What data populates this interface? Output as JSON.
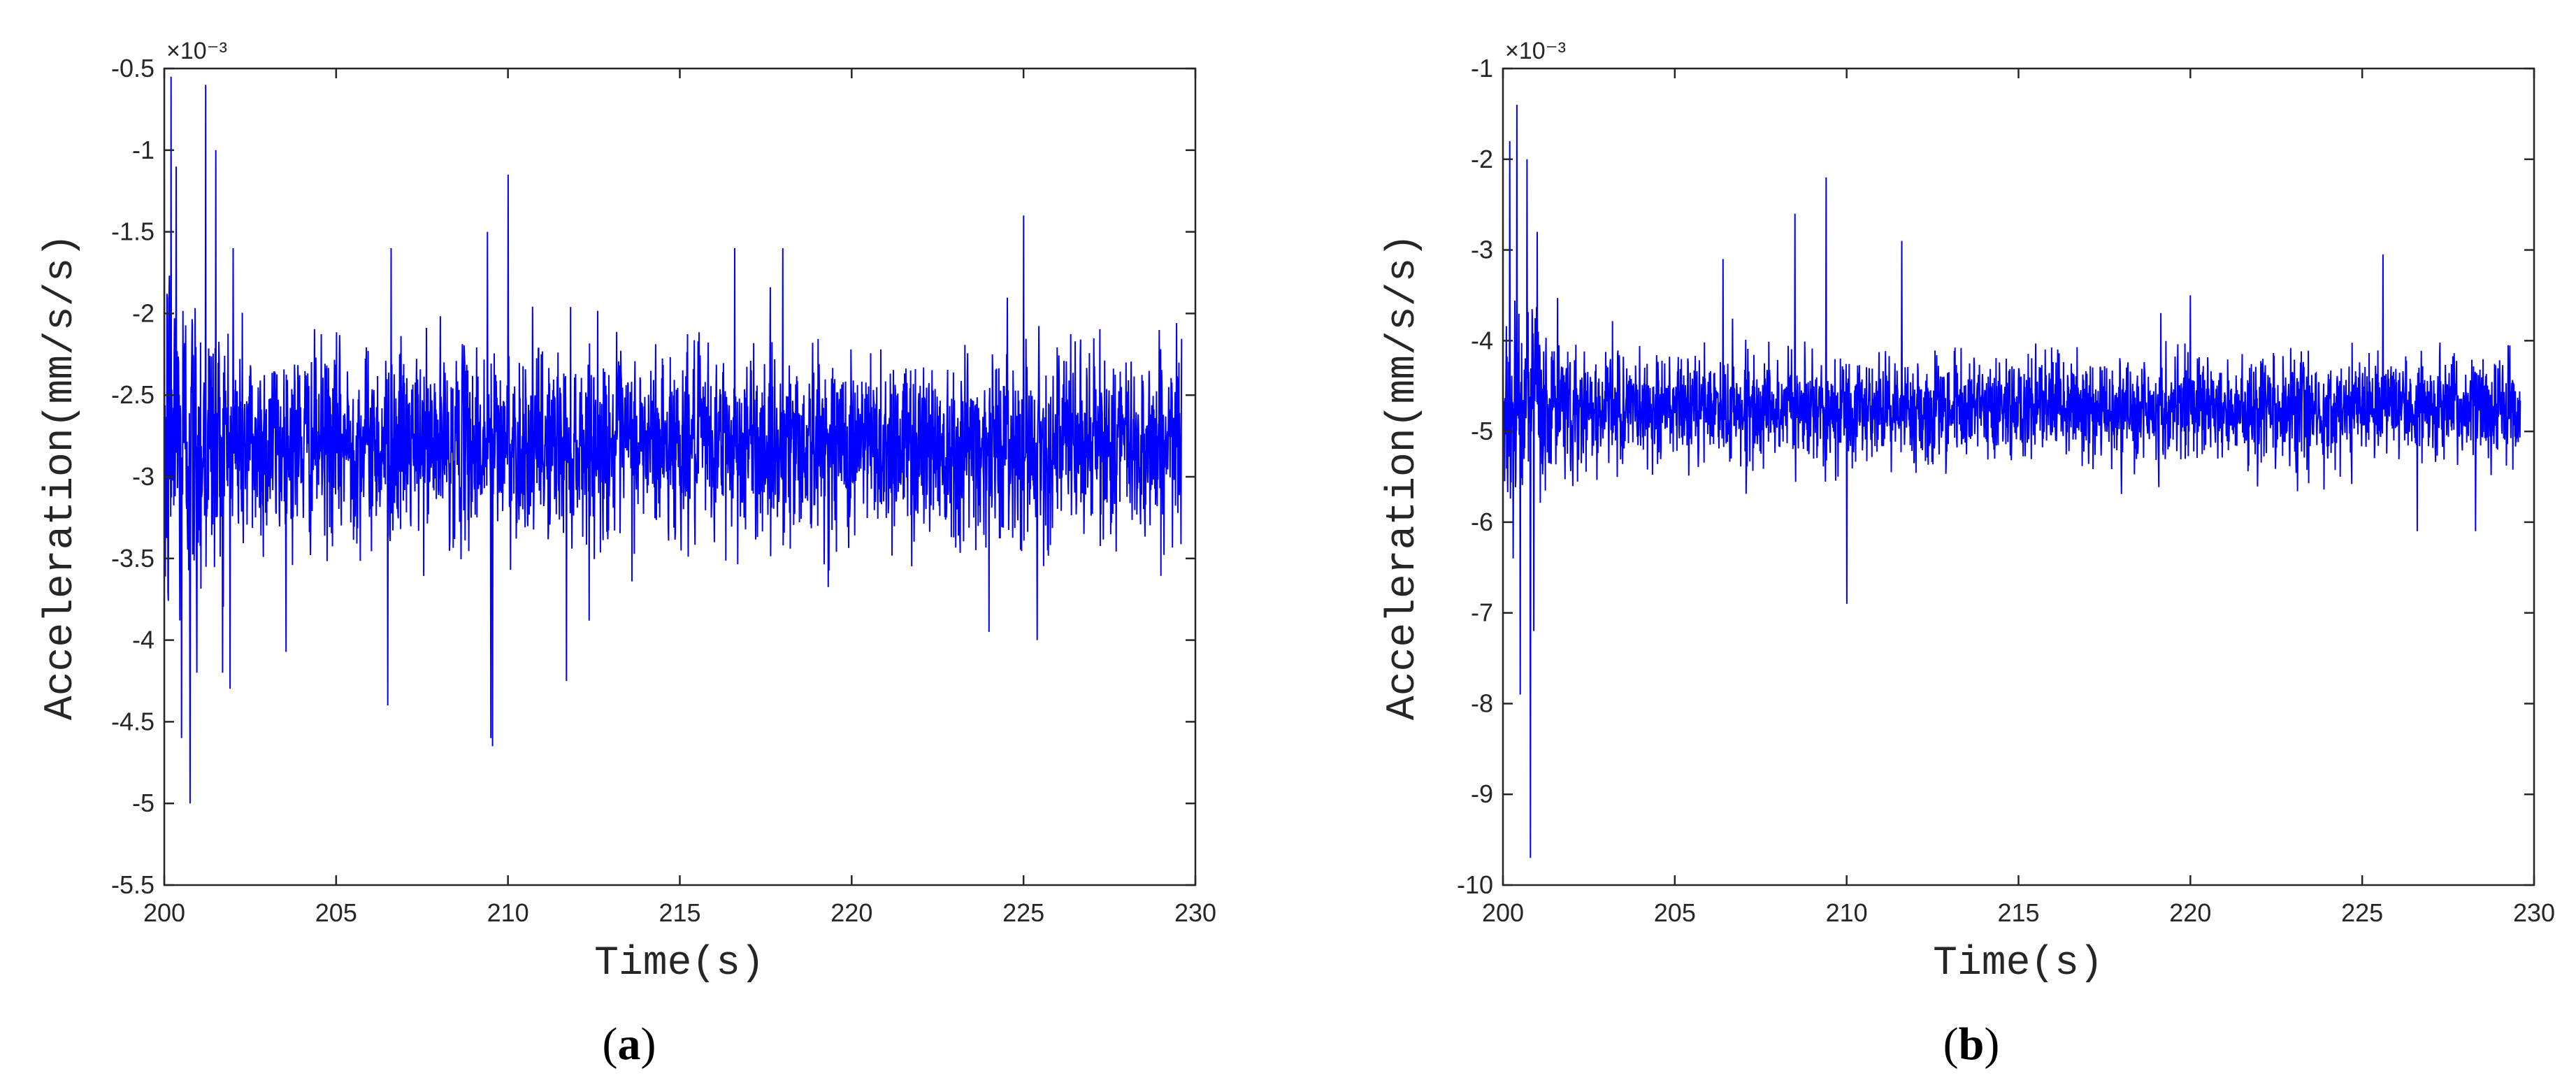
{
  "chart_data": [
    {
      "panel": "(a)",
      "caption_letter": "a",
      "type": "line",
      "xlabel": "Time(s)",
      "ylabel": "Acceleration(mm/s/s)",
      "y_exponent_label": "×10⁻³",
      "xlim": [
        200,
        230
      ],
      "ylim": [
        -5.5,
        -0.5
      ],
      "x_ticks": [
        "200",
        "205",
        "210",
        "215",
        "220",
        "225",
        "230"
      ],
      "y_ticks": [
        "-5.5",
        "-5",
        "-4.5",
        "-4",
        "-3.5",
        "-3",
        "-2.5",
        "-2",
        "-1.5",
        "-1",
        "-0.5"
      ],
      "grid": false,
      "series": [
        {
          "color": "#0000ff",
          "mean": -2.8,
          "x_end": 229.6,
          "peaks": [
            {
              "x": 200.2,
              "y": -0.55
            },
            {
              "x": 200.35,
              "y": -1.1
            },
            {
              "x": 200.5,
              "y": -4.6
            },
            {
              "x": 200.75,
              "y": -5.0
            },
            {
              "x": 200.95,
              "y": -4.2
            },
            {
              "x": 201.2,
              "y": -0.6
            },
            {
              "x": 201.5,
              "y": -1.0
            },
            {
              "x": 201.7,
              "y": -4.2
            },
            {
              "x": 202.0,
              "y": -1.6
            },
            {
              "x": 206.5,
              "y": -4.4
            },
            {
              "x": 206.6,
              "y": -1.6
            },
            {
              "x": 209.4,
              "y": -1.5
            },
            {
              "x": 209.5,
              "y": -4.6
            },
            {
              "x": 209.55,
              "y": -4.65
            },
            {
              "x": 210.0,
              "y": -1.15
            },
            {
              "x": 211.7,
              "y": -4.25
            },
            {
              "x": 216.6,
              "y": -1.6
            },
            {
              "x": 218.0,
              "y": -1.6
            },
            {
              "x": 225.0,
              "y": -1.4
            },
            {
              "x": 225.4,
              "y": -4.0
            },
            {
              "x": 224.0,
              "y": -3.95
            }
          ]
        }
      ]
    },
    {
      "panel": "(b)",
      "caption_letter": "b",
      "type": "line",
      "xlabel": "Time(s)",
      "ylabel": "Acceleration(mm/s/s)",
      "y_exponent_label": "×10⁻³",
      "xlim": [
        200,
        230
      ],
      "ylim": [
        -10,
        -1
      ],
      "x_ticks": [
        "200",
        "205",
        "210",
        "215",
        "220",
        "225",
        "230"
      ],
      "y_ticks": [
        "-10",
        "-9",
        "-8",
        "-7",
        "-6",
        "-5",
        "-4",
        "-3",
        "-2",
        "-1"
      ],
      "grid": false,
      "series": [
        {
          "color": "#0000ff",
          "mean": -4.75,
          "x_end": 229.6,
          "peaks": [
            {
              "x": 200.2,
              "y": -1.8
            },
            {
              "x": 200.3,
              "y": -6.4
            },
            {
              "x": 200.4,
              "y": -1.4
            },
            {
              "x": 200.5,
              "y": -7.9
            },
            {
              "x": 200.7,
              "y": -2.0
            },
            {
              "x": 200.8,
              "y": -9.7
            },
            {
              "x": 200.9,
              "y": -7.2
            },
            {
              "x": 201.0,
              "y": -2.8
            },
            {
              "x": 206.4,
              "y": -3.1
            },
            {
              "x": 208.5,
              "y": -2.6
            },
            {
              "x": 209.4,
              "y": -2.2
            },
            {
              "x": 210.0,
              "y": -6.9
            },
            {
              "x": 211.6,
              "y": -2.9
            },
            {
              "x": 220.0,
              "y": -3.5
            },
            {
              "x": 225.6,
              "y": -3.05
            },
            {
              "x": 226.6,
              "y": -6.1
            },
            {
              "x": 228.3,
              "y": -6.1
            }
          ]
        }
      ]
    }
  ]
}
